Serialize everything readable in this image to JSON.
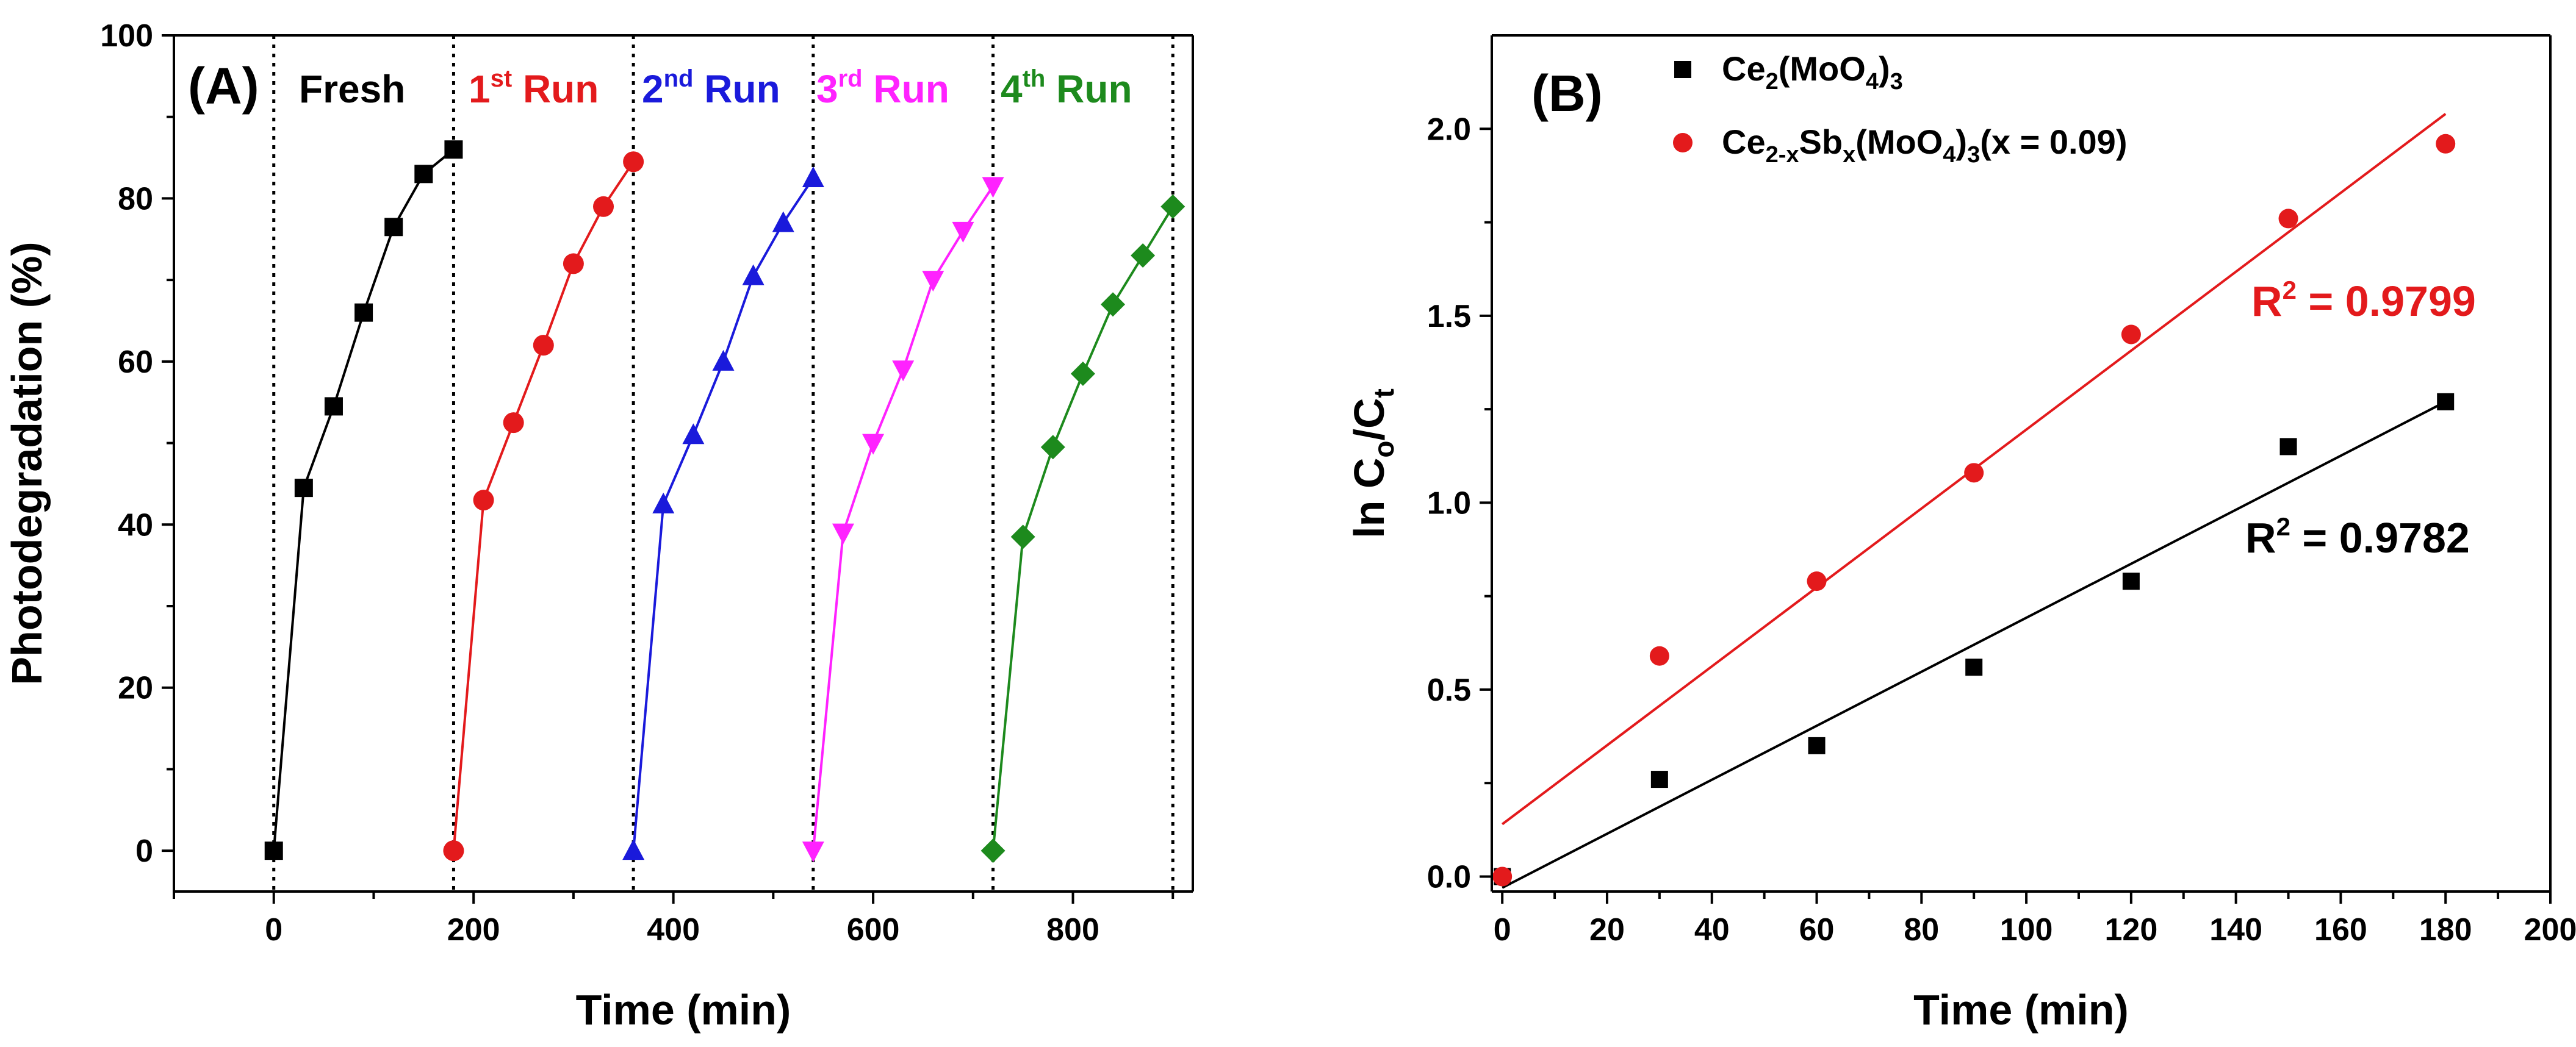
{
  "chart_data": [
    {
      "panel": "(A)",
      "type": "line",
      "xlabel": "Time (min)",
      "ylabel": "Photodegradation (%)",
      "xlim": [
        -100,
        920
      ],
      "ylim": [
        -5,
        100
      ],
      "xticks": [
        0,
        200,
        400,
        600,
        800
      ],
      "yticks": [
        0,
        20,
        40,
        60,
        80,
        100
      ],
      "separators_x": [
        0,
        180,
        360,
        540,
        720,
        900
      ],
      "run_labels": [
        {
          "text": "Fresh",
          "sup": "",
          "tail": "",
          "color": "#000000"
        },
        {
          "text": "1",
          "sup": "st",
          "tail": " Run",
          "color": "#e31a1c"
        },
        {
          "text": "2",
          "sup": "nd",
          "tail": " Run",
          "color": "#1a1adb"
        },
        {
          "text": "3",
          "sup": "rd",
          "tail": " Run",
          "color": "#ff22ff"
        },
        {
          "text": "4",
          "sup": "th",
          "tail": " Run",
          "color": "#1d8a1d"
        }
      ],
      "series": [
        {
          "name": "Fresh",
          "color": "#000000",
          "marker": "square",
          "x": [
            0,
            30,
            60,
            90,
            120,
            150,
            180
          ],
          "y": [
            0,
            44.5,
            54.5,
            66,
            76.5,
            83,
            86
          ]
        },
        {
          "name": "1st Run",
          "color": "#e31a1c",
          "marker": "circle",
          "x": [
            180,
            210,
            240,
            270,
            300,
            330,
            360
          ],
          "y": [
            0,
            43,
            52.5,
            62,
            72,
            79,
            84.5
          ]
        },
        {
          "name": "2nd Run",
          "color": "#1a1adb",
          "marker": "triangle-up",
          "x": [
            360,
            390,
            420,
            450,
            480,
            510,
            540
          ],
          "y": [
            0,
            42.5,
            51,
            60,
            70.5,
            77,
            82.5
          ]
        },
        {
          "name": "3rd Run",
          "color": "#ff22ff",
          "marker": "triangle-down",
          "x": [
            540,
            570,
            600,
            630,
            660,
            690,
            720
          ],
          "y": [
            0,
            39,
            50,
            59,
            70,
            76,
            81.5
          ]
        },
        {
          "name": "4th Run",
          "color": "#1d8a1d",
          "marker": "diamond",
          "x": [
            720,
            750,
            780,
            810,
            840,
            870,
            900
          ],
          "y": [
            0,
            38.5,
            49.5,
            58.5,
            67,
            73,
            79
          ]
        }
      ]
    },
    {
      "panel": "(B)",
      "type": "scatter",
      "xlabel": "Time (min)",
      "ylabel": "ln Co/Ct",
      "ylabel_parts": {
        "pre": "ln C",
        "sub1": "o",
        "mid": "/C",
        "sub2": "t"
      },
      "xlim": [
        -2,
        200
      ],
      "ylim": [
        -0.04,
        2.25
      ],
      "xticks": [
        0,
        20,
        40,
        60,
        80,
        100,
        120,
        140,
        160,
        180,
        200
      ],
      "yticks": [
        0.0,
        0.5,
        1.0,
        1.5,
        2.0
      ],
      "ytick_labels": [
        "0.0",
        "0.5",
        "1.0",
        "1.5",
        "2.0"
      ],
      "legend": [
        {
          "label": "Ce2(MoO4)3",
          "color": "#000000",
          "marker": "square",
          "parts": [
            [
              "Ce",
              ""
            ],
            [
              "2",
              "sub"
            ],
            [
              "(MoO",
              ""
            ],
            [
              "4",
              "sub"
            ],
            [
              ")",
              ""
            ],
            [
              "3",
              "sub"
            ]
          ]
        },
        {
          "label": "Ce2-xSbx(MoO4)3(x = 0.09)",
          "color": "#e31a1c",
          "marker": "circle",
          "parts": [
            [
              "Ce",
              ""
            ],
            [
              "2-x",
              "sub"
            ],
            [
              "Sb",
              ""
            ],
            [
              "x",
              "sub"
            ],
            [
              "(MoO",
              ""
            ],
            [
              "4",
              "sub"
            ],
            [
              ")",
              ""
            ],
            [
              "3",
              "sub"
            ],
            [
              "(x = 0.09)",
              ""
            ]
          ]
        }
      ],
      "series": [
        {
          "name": "Ce2(MoO4)3",
          "color": "#000000",
          "marker": "square",
          "x": [
            0,
            30,
            60,
            90,
            120,
            150,
            180
          ],
          "y": [
            0.0,
            0.26,
            0.35,
            0.56,
            0.79,
            1.15,
            1.27
          ],
          "fit": {
            "x": [
              0,
              180
            ],
            "y": [
              -0.03,
              1.27
            ]
          },
          "r2_text": "R",
          "r2_sup": "2",
          "r2_value": " = 0.9782"
        },
        {
          "name": "Ce2-xSbx(MoO4)3(x = 0.09)",
          "color": "#e31a1c",
          "marker": "circle",
          "x": [
            0,
            30,
            60,
            90,
            120,
            150,
            180
          ],
          "y": [
            0.0,
            0.59,
            0.79,
            1.08,
            1.45,
            1.76,
            1.96
          ],
          "fit": {
            "x": [
              0,
              180
            ],
            "y": [
              0.14,
              2.04
            ]
          },
          "r2_text": "R",
          "r2_sup": "2",
          "r2_value": " = 0.9799"
        }
      ]
    }
  ]
}
